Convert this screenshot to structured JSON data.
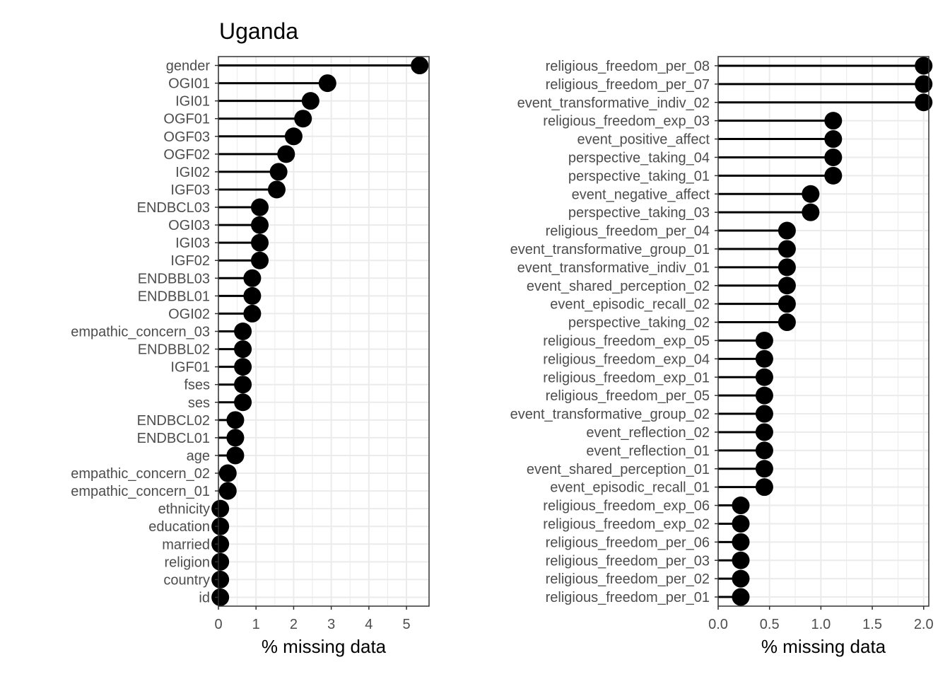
{
  "title": "Uganda",
  "colors": {
    "marker": "#000000",
    "grid": "#ebebeb",
    "panel_border": "#333333",
    "tick_text": "#4d4d4d"
  },
  "chart_data": [
    {
      "type": "lollipop",
      "xlabel": "% missing data",
      "ylabel": "",
      "xlim": [
        0,
        5.6
      ],
      "xticks": [
        0,
        1,
        2,
        3,
        4,
        5
      ],
      "xtick_labels": [
        "0",
        "1",
        "2",
        "3",
        "4",
        "5"
      ],
      "grid": true,
      "categories": [
        "gender",
        "OGI01",
        "IGI01",
        "OGF01",
        "OGF03",
        "OGF02",
        "IGI02",
        "IGF03",
        "ENDBCL03",
        "OGI03",
        "IGI03",
        "IGF02",
        "ENDBBL03",
        "ENDBBL01",
        "OGI02",
        "empathic_concern_03",
        "ENDBBL02",
        "IGF01",
        "fses",
        "ses",
        "ENDBCL02",
        "ENDBCL01",
        "age",
        "empathic_concern_02",
        "empathic_concern_01",
        "ethnicity",
        "education",
        "married",
        "religion",
        "country",
        "id"
      ],
      "values": [
        5.35,
        2.9,
        2.45,
        2.25,
        2.0,
        1.8,
        1.6,
        1.55,
        1.1,
        1.1,
        1.1,
        1.1,
        0.9,
        0.9,
        0.9,
        0.65,
        0.65,
        0.65,
        0.65,
        0.65,
        0.45,
        0.45,
        0.45,
        0.25,
        0.25,
        0.05,
        0.05,
        0.05,
        0.05,
        0.05,
        0.05
      ]
    },
    {
      "type": "lollipop",
      "xlabel": "% missing data",
      "ylabel": "",
      "xlim": [
        0,
        2.05
      ],
      "xticks": [
        0,
        0.5,
        1,
        1.5,
        2
      ],
      "xtick_labels": [
        "0.0",
        "0.5",
        "1.0",
        "1.5",
        "2.0"
      ],
      "grid": true,
      "categories": [
        "religious_freedom_per_08",
        "religious_freedom_per_07",
        "event_transformative_indiv_02",
        "religious_freedom_exp_03",
        "event_positive_affect",
        "perspective_taking_04",
        "perspective_taking_01",
        "event_negative_affect",
        "perspective_taking_03",
        "religious_freedom_per_04",
        "event_transformative_group_01",
        "event_transformative_indiv_01",
        "event_shared_perception_02",
        "event_episodic_recall_02",
        "perspective_taking_02",
        "religious_freedom_exp_05",
        "religious_freedom_exp_04",
        "religious_freedom_exp_01",
        "religious_freedom_per_05",
        "event_transformative_group_02",
        "event_reflection_02",
        "event_reflection_01",
        "event_shared_perception_01",
        "event_episodic_recall_01",
        "religious_freedom_exp_06",
        "religious_freedom_exp_02",
        "religious_freedom_per_06",
        "religious_freedom_per_03",
        "religious_freedom_per_02",
        "religious_freedom_per_01"
      ],
      "values": [
        2.0,
        2.0,
        2.0,
        1.12,
        1.12,
        1.12,
        1.12,
        0.9,
        0.9,
        0.67,
        0.67,
        0.67,
        0.67,
        0.67,
        0.67,
        0.45,
        0.45,
        0.45,
        0.45,
        0.45,
        0.45,
        0.45,
        0.45,
        0.45,
        0.22,
        0.22,
        0.22,
        0.22,
        0.22,
        0.22
      ]
    }
  ]
}
